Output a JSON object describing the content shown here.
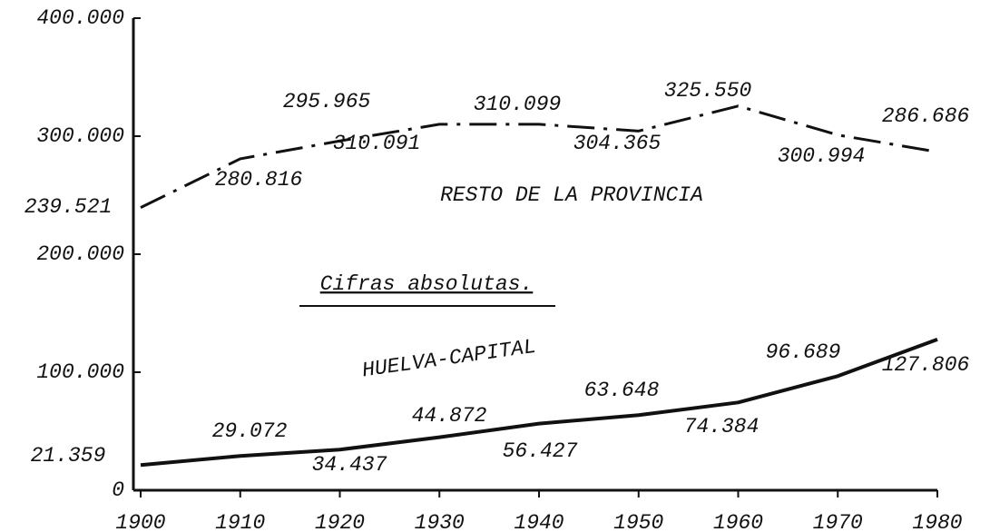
{
  "chart_data": {
    "type": "line",
    "title": "Cifras absolutas.",
    "x": [
      1900,
      1910,
      1920,
      1930,
      1940,
      1950,
      1960,
      1970,
      1980
    ],
    "series": [
      {
        "name": "RESTO DE LA PROVINCIA",
        "color": "#111111",
        "style": "dashdot",
        "values": [
          239521,
          280816,
          295965,
          310091,
          310099,
          304365,
          325550,
          300994,
          286686
        ],
        "value_labels": [
          "239.521",
          "280.816",
          "295.965",
          "310.091",
          "310.099",
          "304.365",
          "325.550",
          "300.994",
          "286.686"
        ]
      },
      {
        "name": "HUELVA-CAPITAL",
        "color": "#111111",
        "style": "solid",
        "values": [
          21359,
          29072,
          34437,
          44872,
          56427,
          63648,
          74384,
          96689,
          127806
        ],
        "value_labels": [
          "21.359",
          "29.072",
          "34.437",
          "44.872",
          "56.427",
          "63.648",
          "74.384",
          "96.689",
          "127.806"
        ]
      }
    ],
    "xlim": [
      1900,
      1980
    ],
    "xticks": [
      1900,
      1910,
      1920,
      1930,
      1940,
      1950,
      1960,
      1970,
      1980
    ],
    "ylim": [
      0,
      400000
    ],
    "yticks": [
      0,
      {
        "value": 100000,
        "label": "100.000"
      },
      {
        "value": 200000,
        "label": "200.000"
      },
      {
        "value": 300000,
        "label": "300.000"
      },
      {
        "value": 400000,
        "label": "400.000"
      }
    ],
    "grid": false
  }
}
